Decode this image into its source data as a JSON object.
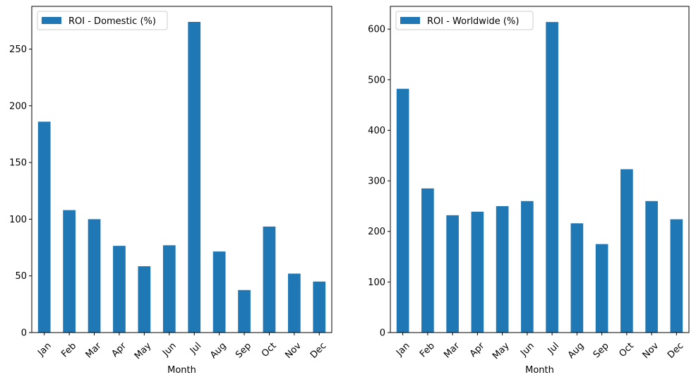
{
  "colors": {
    "bar": "#1f77b4",
    "axis": "#000000",
    "legend_border": "#cccccc"
  },
  "chart_data": [
    {
      "type": "bar",
      "title": "",
      "xlabel": "Month",
      "ylabel": "",
      "legend_position": "top-left",
      "grid": false,
      "categories": [
        "Jan",
        "Feb",
        "Mar",
        "Apr",
        "May",
        "Jun",
        "Jul",
        "Aug",
        "Sep",
        "Oct",
        "Nov",
        "Dec"
      ],
      "series": [
        {
          "name": "ROI - Domestic (%)",
          "values": [
            186,
            108,
            100,
            76.5,
            58.5,
            77,
            274,
            71.5,
            37.5,
            93.5,
            52,
            45
          ]
        }
      ],
      "ylim": [
        0,
        287.7
      ],
      "yticks": [
        0,
        50,
        100,
        150,
        200,
        250
      ]
    },
    {
      "type": "bar",
      "title": "",
      "xlabel": "Month",
      "ylabel": "",
      "legend_position": "top-left",
      "grid": false,
      "categories": [
        "Jan",
        "Feb",
        "Mar",
        "Apr",
        "May",
        "Jun",
        "Jul",
        "Aug",
        "Sep",
        "Oct",
        "Nov",
        "Dec"
      ],
      "series": [
        {
          "name": "ROI - Worldwide (%)",
          "values": [
            482,
            285,
            232,
            239,
            250,
            260,
            614,
            216,
            175,
            323,
            260,
            224
          ]
        }
      ],
      "ylim": [
        0,
        645
      ],
      "yticks": [
        0,
        100,
        200,
        300,
        400,
        500,
        600
      ]
    }
  ]
}
